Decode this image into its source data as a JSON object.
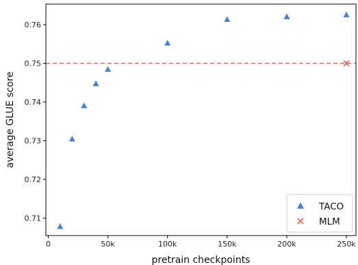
{
  "chart_data": {
    "type": "scatter",
    "xlabel": "pretrain checkpoints",
    "ylabel": "average GLUE score",
    "xlim": [
      -2000,
      258000
    ],
    "ylim": [
      0.7055,
      0.7653
    ],
    "xticks": [
      {
        "value": 0,
        "label": "0"
      },
      {
        "value": 50000,
        "label": "50k"
      },
      {
        "value": 100000,
        "label": "100k"
      },
      {
        "value": 150000,
        "label": "150k"
      },
      {
        "value": 200000,
        "label": "200k"
      },
      {
        "value": 250000,
        "label": "250k"
      }
    ],
    "yticks": [
      {
        "value": 0.71,
        "label": "0.71"
      },
      {
        "value": 0.72,
        "label": "0.72"
      },
      {
        "value": 0.73,
        "label": "0.73"
      },
      {
        "value": 0.74,
        "label": "0.74"
      },
      {
        "value": 0.75,
        "label": "0.75"
      },
      {
        "value": 0.76,
        "label": "0.76"
      }
    ],
    "grid": false,
    "legend_position": "bottom-right",
    "series": [
      {
        "name": "TACO",
        "marker": "triangle",
        "color": "#4a7fd8",
        "points": [
          {
            "x": 10000,
            "y": 0.7078
          },
          {
            "x": 20000,
            "y": 0.7304
          },
          {
            "x": 30000,
            "y": 0.739
          },
          {
            "x": 40000,
            "y": 0.7447
          },
          {
            "x": 50000,
            "y": 0.7484
          },
          {
            "x": 100000,
            "y": 0.7552
          },
          {
            "x": 150000,
            "y": 0.7613
          },
          {
            "x": 200000,
            "y": 0.762
          },
          {
            "x": 250000,
            "y": 0.7625
          }
        ]
      },
      {
        "name": "MLM",
        "marker": "x",
        "color": "#ee6666",
        "points": [
          {
            "x": 250000,
            "y": 0.75
          }
        ]
      }
    ],
    "reference_line": {
      "y": 0.75,
      "color": "#ee6666",
      "style": "dashed"
    }
  }
}
